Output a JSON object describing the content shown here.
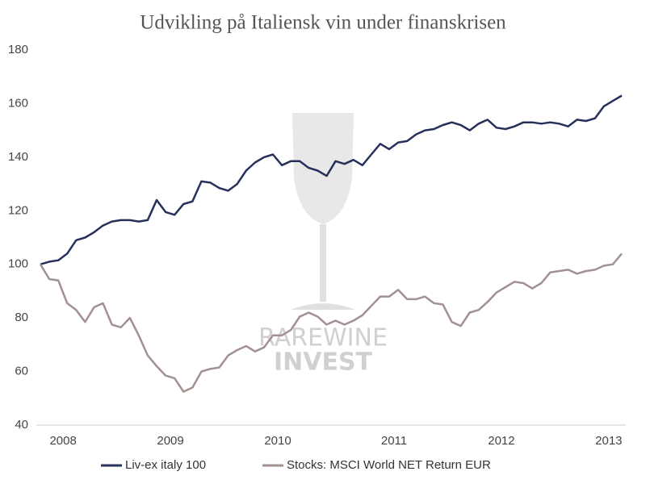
{
  "chart_data": {
    "type": "line",
    "title": "Udvikling  på Italiensk vin under finanskrisen",
    "categories": [
      null,
      null,
      "2008",
      null,
      null,
      null,
      null,
      null,
      null,
      null,
      null,
      null,
      null,
      null,
      "2009",
      null,
      null,
      null,
      null,
      null,
      null,
      null,
      null,
      null,
      null,
      null,
      "2010",
      null,
      null,
      null,
      null,
      null,
      null,
      null,
      null,
      null,
      null,
      null,
      null,
      "2011",
      null,
      null,
      null,
      null,
      null,
      null,
      null,
      null,
      null,
      null,
      null,
      "2012",
      null,
      null,
      null,
      null,
      null,
      null,
      null,
      null,
      null,
      null,
      null,
      "2013",
      null,
      null
    ],
    "series": [
      {
        "name": "Liv-ex italy 100",
        "color": "#27305a",
        "values": [
          100,
          101,
          101.5,
          104,
          109,
          110,
          112,
          114.5,
          116,
          116.5,
          116.5,
          116,
          116.5,
          124,
          119.5,
          118.5,
          122.5,
          123.5,
          131,
          130.5,
          128.5,
          127.5,
          130,
          135,
          138,
          140,
          141,
          137,
          138.5,
          138.5,
          136,
          135,
          133,
          138.5,
          137.5,
          139,
          137,
          141,
          145,
          143,
          145.5,
          146,
          148.5,
          150,
          150.5,
          152,
          153,
          152,
          150,
          152.5,
          154,
          151,
          150.5,
          151.5,
          153,
          153,
          152.5,
          153,
          152.5,
          151.5,
          154,
          153.5,
          154.5,
          159,
          161,
          163
        ]
      },
      {
        "name": "Stocks: MSCI World NET Return EUR",
        "color": "#a39090",
        "values": [
          100,
          94.5,
          94,
          85.5,
          83,
          78.5,
          84,
          85.5,
          77.5,
          76.5,
          80,
          73.5,
          66,
          62,
          58.5,
          57.5,
          52.5,
          54,
          60,
          61,
          61.5,
          66,
          68,
          69.5,
          67.5,
          69,
          73.5,
          73.5,
          75.5,
          80.5,
          82,
          80.5,
          77.5,
          79,
          77.5,
          79,
          81,
          84.5,
          88,
          88,
          90.5,
          87,
          87,
          88,
          85.5,
          85,
          78.5,
          77,
          82,
          83,
          86,
          89.5,
          91.5,
          93.5,
          93,
          91,
          93,
          97,
          97.5,
          98,
          96.5,
          97.5,
          98,
          99.5,
          100,
          104
        ]
      }
    ],
    "ylim": [
      40,
      180
    ],
    "yticks": [
      40,
      60,
      80,
      100,
      120,
      140,
      160,
      180
    ],
    "grid": false,
    "legend": "bottom"
  },
  "watermark": {
    "line1": "RAREWINE",
    "line2": "INVEST"
  }
}
